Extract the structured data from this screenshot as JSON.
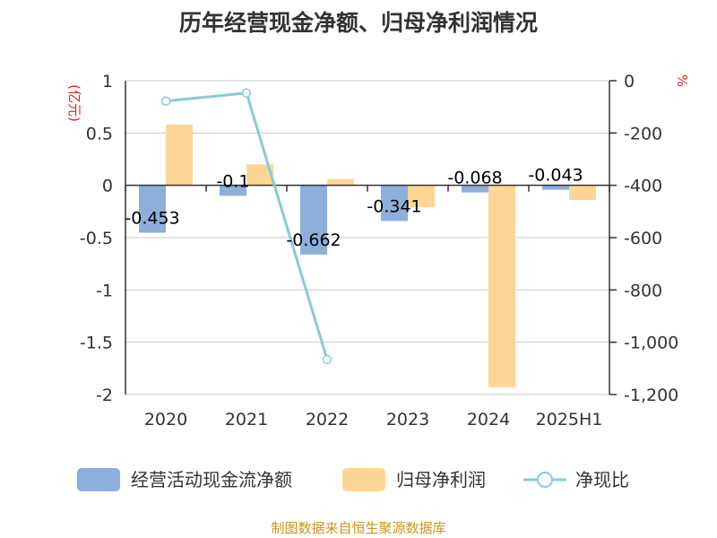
{
  "chart_data": {
    "type": "bar",
    "title": "历年经营现金净额、归母净利润情况",
    "categories": [
      "2020",
      "2021",
      "2022",
      "2023",
      "2024",
      "2025H1"
    ],
    "left_axis": {
      "unit": "(亿元)",
      "ylim": [
        -2,
        1
      ],
      "ticks": [
        1,
        0.5,
        0,
        -0.5,
        -1,
        -1.5,
        -2
      ],
      "tick_labels": [
        "1",
        "0.5",
        "0",
        "-0.5",
        "-1",
        "-1.5",
        "-2"
      ]
    },
    "right_axis": {
      "unit": "%",
      "ylim": [
        -1200,
        0
      ],
      "ticks": [
        0,
        -200,
        -400,
        -600,
        -800,
        -1000,
        -1200
      ],
      "tick_labels": [
        "0",
        "-200",
        "-400",
        "-600",
        "-800",
        "-1,000",
        "-1,200"
      ]
    },
    "grid": true,
    "legend_position": "bottom",
    "series": [
      {
        "name": "经营活动现金流净额",
        "kind": "bar",
        "axis": "left",
        "color": "#8eaedb",
        "values": [
          -0.453,
          -0.1,
          -0.662,
          -0.341,
          -0.068,
          -0.043
        ],
        "labels": [
          "-0.453",
          "-0.1",
          "-0.662",
          "-0.341",
          "-0.068",
          "-0.043"
        ]
      },
      {
        "name": "归母净利润",
        "kind": "bar",
        "axis": "left",
        "color": "#fdd696",
        "values": [
          0.58,
          0.2,
          0.06,
          -0.21,
          -1.93,
          -0.14
        ]
      },
      {
        "name": "净现比",
        "kind": "line",
        "axis": "right",
        "color": "#86ccd6",
        "values": [
          -78,
          -47,
          -1066,
          null,
          null,
          null
        ]
      }
    ]
  },
  "source": "制图数据来自恒生聚源数据库"
}
